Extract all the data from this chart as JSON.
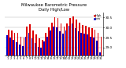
{
  "title": "Milwaukee Barometric Pressure\nDaily High/Low",
  "title_fontsize": 3.8,
  "ylim": [
    28.6,
    30.75
  ],
  "yticks": [
    29.0,
    29.5,
    30.0,
    30.5
  ],
  "bar_width": 0.42,
  "high_color": "#dd0000",
  "low_color": "#0000cc",
  "background_color": "#ffffff",
  "legend_high": "High",
  "legend_low": "Low",
  "days": [
    1,
    2,
    3,
    4,
    5,
    6,
    7,
    8,
    9,
    10,
    11,
    12,
    13,
    14,
    15,
    16,
    17,
    18,
    19,
    20,
    21,
    22,
    23,
    24,
    25,
    26,
    27,
    28,
    29,
    30,
    31
  ],
  "high": [
    29.88,
    29.85,
    29.75,
    29.72,
    29.55,
    29.5,
    30.05,
    30.15,
    29.85,
    29.65,
    29.45,
    29.4,
    29.75,
    30.0,
    30.25,
    30.52,
    30.48,
    30.18,
    30.05,
    30.2,
    30.48,
    30.55,
    30.38,
    30.22,
    30.1,
    30.08,
    30.02,
    29.98,
    29.88,
    29.75,
    29.55
  ],
  "low": [
    29.6,
    29.52,
    29.38,
    29.28,
    29.15,
    29.08,
    29.55,
    29.75,
    29.45,
    29.25,
    29.05,
    29.0,
    29.3,
    29.55,
    29.85,
    30.05,
    30.02,
    29.82,
    29.68,
    29.85,
    30.08,
    30.18,
    29.98,
    29.82,
    29.72,
    29.7,
    29.65,
    29.55,
    29.5,
    29.35,
    28.75
  ]
}
